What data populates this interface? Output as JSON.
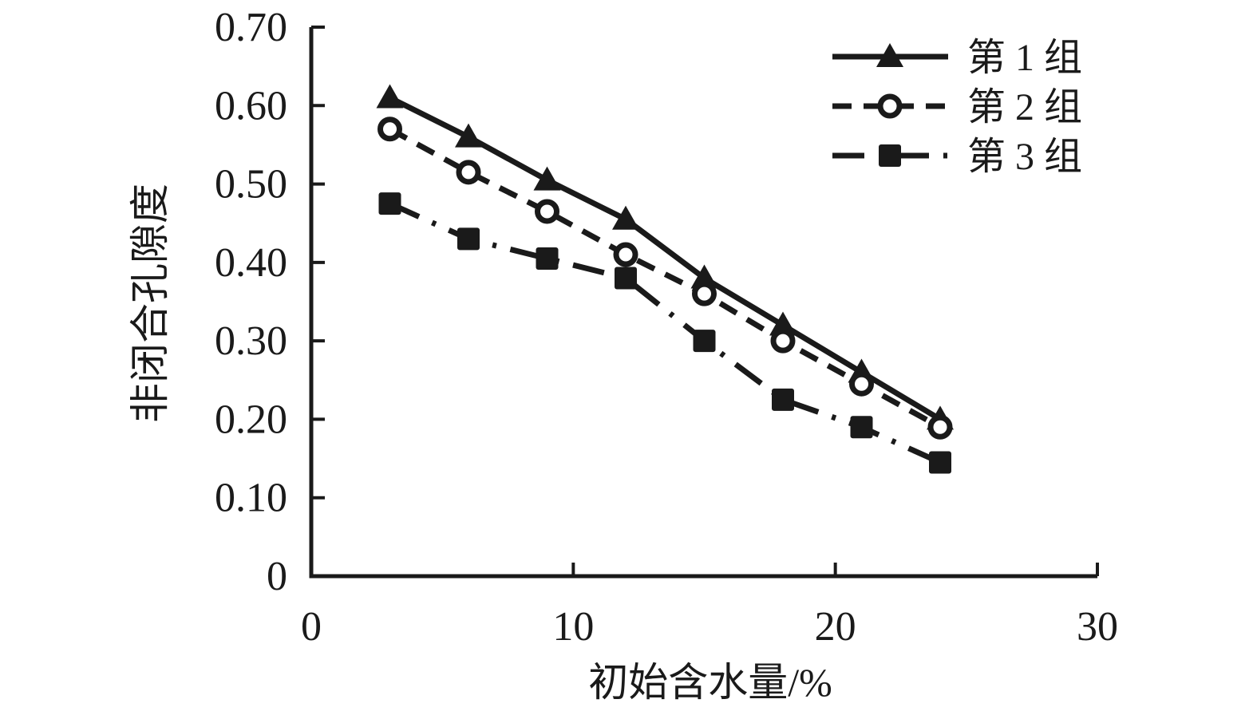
{
  "chart_data": {
    "type": "line",
    "title": "",
    "xlabel": "初始含水量/%",
    "ylabel": "非闭合孔隙度",
    "xlim": [
      0,
      30
    ],
    "ylim": [
      0,
      0.7
    ],
    "x_tick_values": [
      0,
      10,
      20,
      30
    ],
    "x_tick_labels": [
      "0",
      "10",
      "20",
      "30"
    ],
    "y_tick_values": [
      0,
      0.1,
      0.2,
      0.3,
      0.4,
      0.5,
      0.6,
      0.7
    ],
    "y_tick_labels": [
      "0",
      "0.10",
      "0.20",
      "0.30",
      "0.40",
      "0.50",
      "0.60",
      "0.70"
    ],
    "grid": false,
    "legend_position": "top-right",
    "x": [
      3,
      6,
      9,
      12,
      15,
      18,
      21,
      24
    ],
    "series": [
      {
        "name": "第 1 组",
        "marker": "filled-triangle",
        "line_style": "solid",
        "values": [
          0.61,
          0.56,
          0.505,
          0.455,
          0.38,
          0.32,
          0.26,
          0.2
        ]
      },
      {
        "name": "第 2 组",
        "marker": "open-circle",
        "line_style": "dashed",
        "values": [
          0.57,
          0.515,
          0.465,
          0.41,
          0.36,
          0.3,
          0.245,
          0.19
        ]
      },
      {
        "name": "第 3 组",
        "marker": "filled-square",
        "line_style": "dash-dot",
        "values": [
          0.475,
          0.43,
          0.405,
          0.38,
          0.3,
          0.225,
          0.19,
          0.145
        ]
      }
    ],
    "color": "#1a1a1a",
    "background": "#ffffff"
  }
}
